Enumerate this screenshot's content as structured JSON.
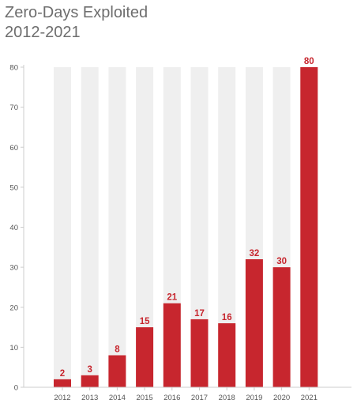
{
  "chart_data": {
    "type": "bar",
    "title_lines": [
      "Zero-Days Exploited",
      "2012-2021"
    ],
    "categories": [
      "2012",
      "2013",
      "2014",
      "2015",
      "2016",
      "2017",
      "2018",
      "2019",
      "2020",
      "2021"
    ],
    "values": [
      2,
      3,
      8,
      15,
      21,
      17,
      16,
      32,
      30,
      80
    ],
    "data_labels": [
      "2",
      "3",
      "8",
      "15",
      "21",
      "17",
      "16",
      "32",
      "30",
      "80"
    ],
    "yticks": [
      "0",
      "10",
      "20",
      "30",
      "40",
      "50",
      "60",
      "70",
      "80"
    ],
    "ylim": [
      0,
      80
    ],
    "background_bars": true,
    "grid": false,
    "colors": {
      "bar": "#c7262e",
      "background_bar": "#efefef",
      "label": "#c7262e",
      "axis": "#cccccc",
      "title": "#6e6e6e"
    }
  }
}
